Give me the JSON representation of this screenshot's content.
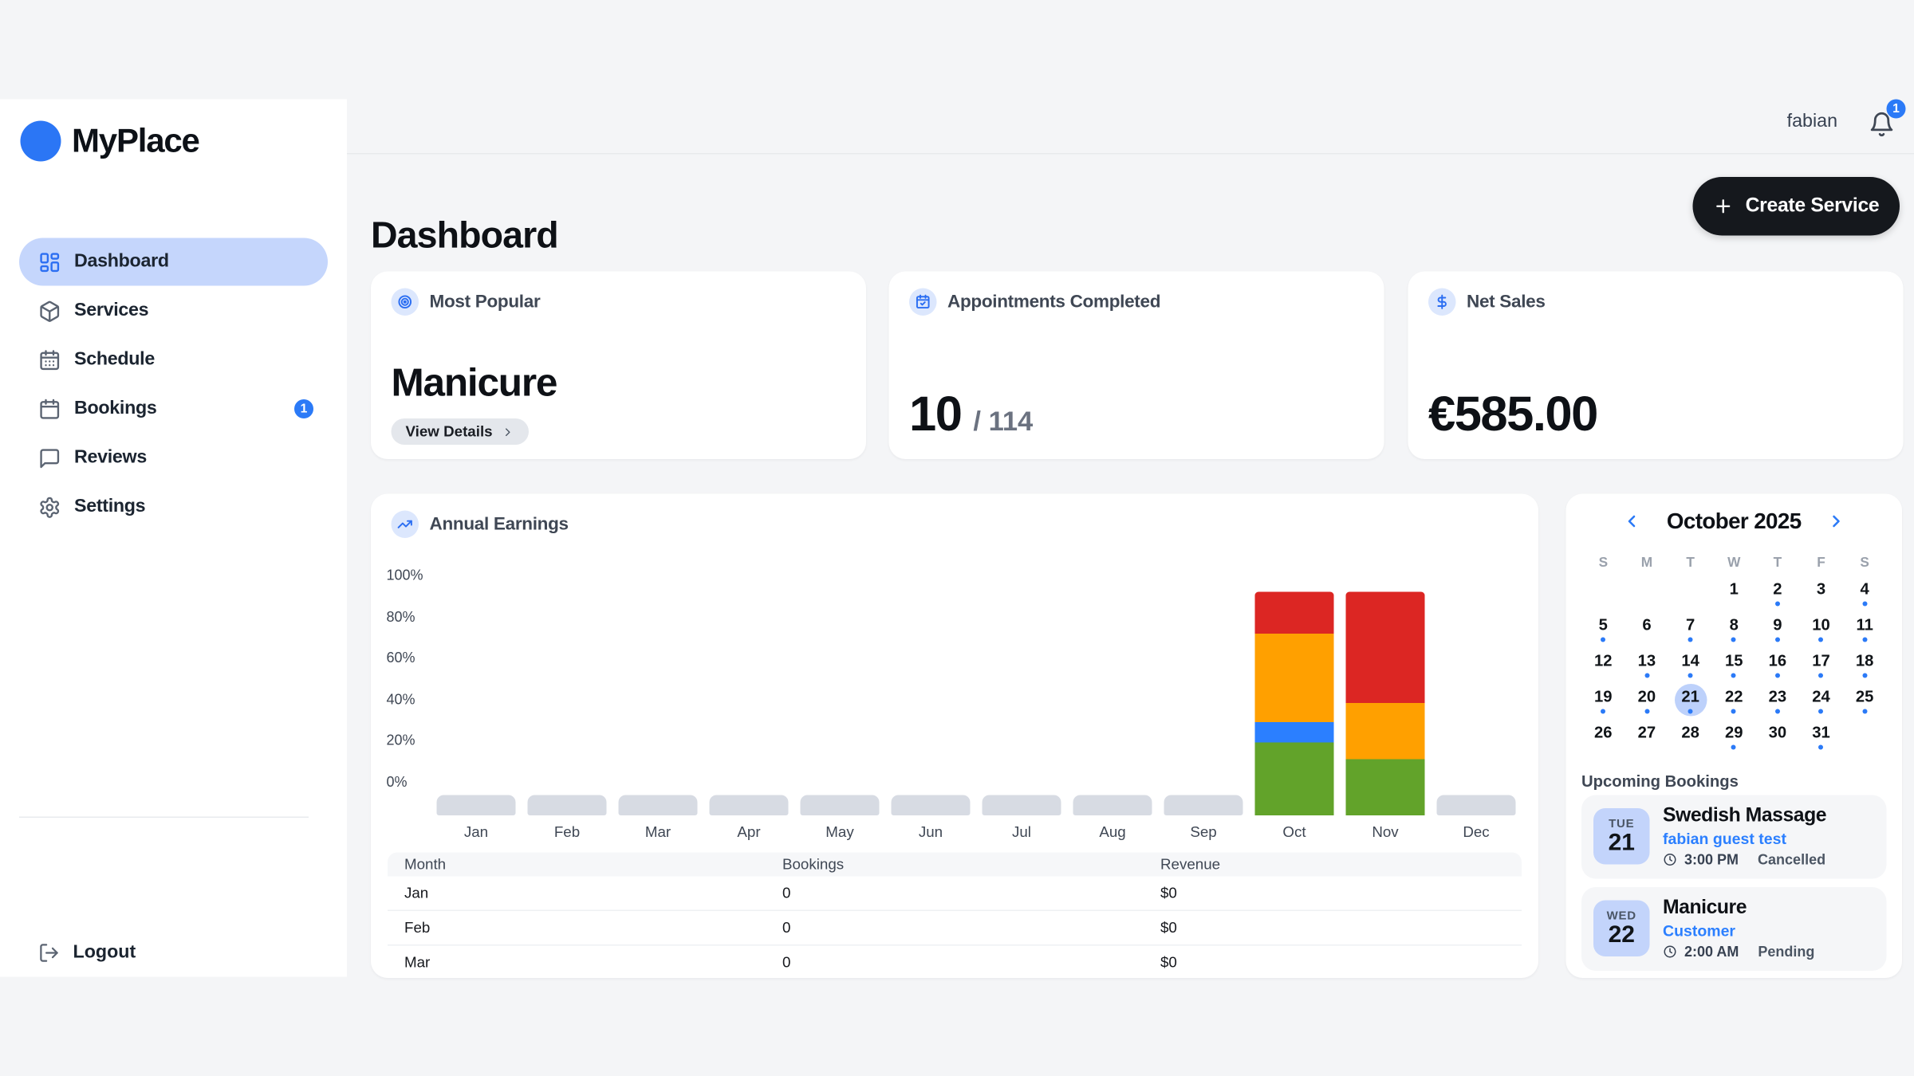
{
  "app": {
    "brand": "MyPlace",
    "background": "#f4f5f7",
    "accent": "#2b7af7"
  },
  "topbar": {
    "username": "fabian",
    "notification_count": "1"
  },
  "sidebar": {
    "items": [
      {
        "label": "Dashboard",
        "icon": "layout-dashboard",
        "active": true
      },
      {
        "label": "Services",
        "icon": "package"
      },
      {
        "label": "Schedule",
        "icon": "calendar-days"
      },
      {
        "label": "Bookings",
        "icon": "calendar",
        "badge": "1"
      },
      {
        "label": "Reviews",
        "icon": "message-square"
      },
      {
        "label": "Settings",
        "icon": "gear"
      }
    ],
    "logout_label": "Logout"
  },
  "header": {
    "title": "Dashboard",
    "create_button": "Create Service"
  },
  "stats": {
    "most_popular": {
      "label": "Most Popular",
      "icon": "target",
      "value": "Manicure",
      "button": "View Details"
    },
    "appointments": {
      "label": "Appointments Completed",
      "icon": "calendar-check",
      "value": "10",
      "separator": "/",
      "total": "114"
    },
    "net_sales": {
      "label": "Net Sales",
      "icon": "dollar",
      "value": "€585.00"
    }
  },
  "chart_card": {
    "title": "Annual Earnings",
    "icon": "trending-up"
  },
  "chart_data": {
    "type": "bar",
    "stacked": true,
    "title": "Annual Earnings",
    "categories": [
      "Jan",
      "Feb",
      "Mar",
      "Apr",
      "May",
      "Jun",
      "Jul",
      "Aug",
      "Sep",
      "Oct",
      "Nov",
      "Dec"
    ],
    "y_ticks": [
      "100%",
      "80%",
      "60%",
      "40%",
      "20%",
      "0%"
    ],
    "ylim": [
      0,
      100
    ],
    "grid": false,
    "legend": "none",
    "series": [
      {
        "name": "green",
        "color": "#62a32a",
        "values": [
          0,
          0,
          0,
          0,
          0,
          0,
          0,
          0,
          0,
          19,
          11,
          0
        ]
      },
      {
        "name": "blue",
        "color": "#2b7fff",
        "values": [
          0,
          0,
          0,
          0,
          0,
          0,
          0,
          0,
          0,
          10,
          0,
          0
        ]
      },
      {
        "name": "orange",
        "color": "#ffa000",
        "values": [
          0,
          0,
          0,
          0,
          0,
          0,
          0,
          0,
          0,
          43,
          27,
          0
        ]
      },
      {
        "name": "red",
        "color": "#dc2623",
        "values": [
          0,
          0,
          0,
          0,
          0,
          0,
          0,
          0,
          0,
          20,
          54,
          0
        ]
      }
    ],
    "empty_bar_color": "#d7dbe3"
  },
  "earnings_table": {
    "headers": [
      "Month",
      "Bookings",
      "Revenue"
    ],
    "rows": [
      [
        "Jan",
        "0",
        "$0"
      ],
      [
        "Feb",
        "0",
        "$0"
      ],
      [
        "Mar",
        "0",
        "$0"
      ]
    ]
  },
  "calendar": {
    "title": "October 2025",
    "weekdays": [
      "S",
      "M",
      "T",
      "W",
      "T",
      "F",
      "S"
    ],
    "selected_day": 21,
    "weeks": [
      [
        null,
        null,
        null,
        {
          "day": 1
        },
        {
          "day": 2,
          "dot": true
        },
        {
          "day": 3
        },
        {
          "day": 4,
          "dot": true
        }
      ],
      [
        {
          "day": 5,
          "dot": true
        },
        {
          "day": 6
        },
        {
          "day": 7,
          "dot": true
        },
        {
          "day": 8,
          "dot": true
        },
        {
          "day": 9,
          "dot": true
        },
        {
          "day": 10,
          "dot": true
        },
        {
          "day": 11,
          "dot": true
        }
      ],
      [
        {
          "day": 12
        },
        {
          "day": 13,
          "dot": true
        },
        {
          "day": 14,
          "dot": true
        },
        {
          "day": 15,
          "dot": true
        },
        {
          "day": 16,
          "dot": true
        },
        {
          "day": 17,
          "dot": true
        },
        {
          "day": 18,
          "dot": true
        }
      ],
      [
        {
          "day": 19,
          "dot": true
        },
        {
          "day": 20,
          "dot": true
        },
        {
          "day": 21,
          "dot": true,
          "selected": true
        },
        {
          "day": 22,
          "dot": true
        },
        {
          "day": 23,
          "dot": true
        },
        {
          "day": 24,
          "dot": true
        },
        {
          "day": 25,
          "dot": true
        }
      ],
      [
        {
          "day": 26
        },
        {
          "day": 27
        },
        {
          "day": 28
        },
        {
          "day": 29,
          "dot": true
        },
        {
          "day": 30
        },
        {
          "day": 31,
          "dot": true
        },
        null
      ]
    ]
  },
  "upcoming": {
    "title": "Upcoming Bookings",
    "bookings": [
      {
        "dow": "TUE",
        "day": "21",
        "title": "Swedish Massage",
        "customer": "fabian guest test",
        "time": "3:00 PM",
        "status": "Cancelled"
      },
      {
        "dow": "WED",
        "day": "22",
        "title": "Manicure",
        "customer": "Customer",
        "time": "2:00 AM",
        "status": "Pending"
      }
    ]
  }
}
